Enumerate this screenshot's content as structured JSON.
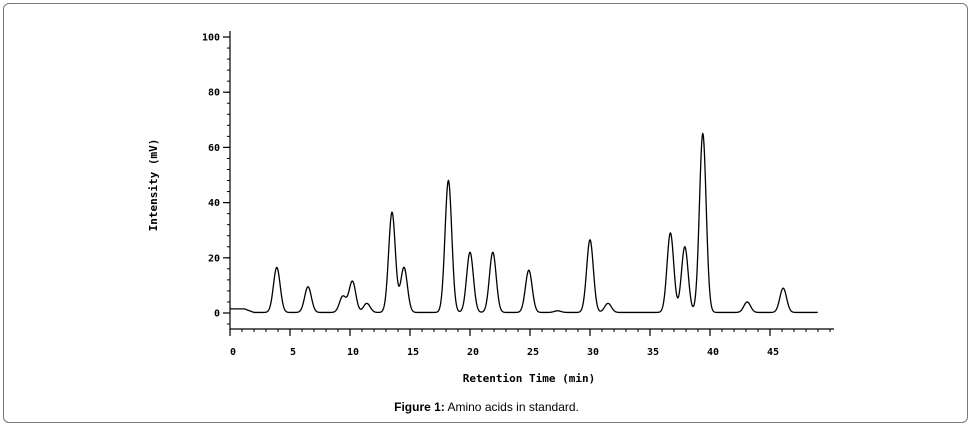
{
  "figure": {
    "caption_label": "Figure 1:",
    "caption_text": " Amino acids in standard."
  },
  "chart_data": {
    "type": "line",
    "xlabel": "Retention Time (min)",
    "ylabel": "Intensity (mV)",
    "xlim": [
      0,
      50
    ],
    "ylim": [
      -5,
      100
    ],
    "x_ticks": [
      0,
      5,
      10,
      15,
      20,
      25,
      30,
      35,
      40,
      45
    ],
    "y_ticks": [
      0,
      20,
      40,
      60,
      80,
      100
    ],
    "grid": false,
    "baseline": 0.2,
    "initial_level": 1.5,
    "x_end": 49,
    "peaks": [
      {
        "x": 3.9,
        "y": 16.5
      },
      {
        "x": 6.5,
        "y": 9.5
      },
      {
        "x": 9.4,
        "y": 6.0
      },
      {
        "x": 10.2,
        "y": 11.5
      },
      {
        "x": 11.4,
        "y": 3.5
      },
      {
        "x": 13.5,
        "y": 36.5
      },
      {
        "x": 14.5,
        "y": 16.5
      },
      {
        "x": 18.2,
        "y": 48.0
      },
      {
        "x": 20.0,
        "y": 22.0
      },
      {
        "x": 21.9,
        "y": 22.0
      },
      {
        "x": 24.9,
        "y": 15.5
      },
      {
        "x": 27.3,
        "y": 0.8
      },
      {
        "x": 30.0,
        "y": 26.5
      },
      {
        "x": 31.5,
        "y": 3.5
      },
      {
        "x": 36.7,
        "y": 29.0
      },
      {
        "x": 37.9,
        "y": 24.0
      },
      {
        "x": 39.4,
        "y": 65.0
      },
      {
        "x": 43.1,
        "y": 4.0
      },
      {
        "x": 46.1,
        "y": 9.0
      }
    ]
  }
}
